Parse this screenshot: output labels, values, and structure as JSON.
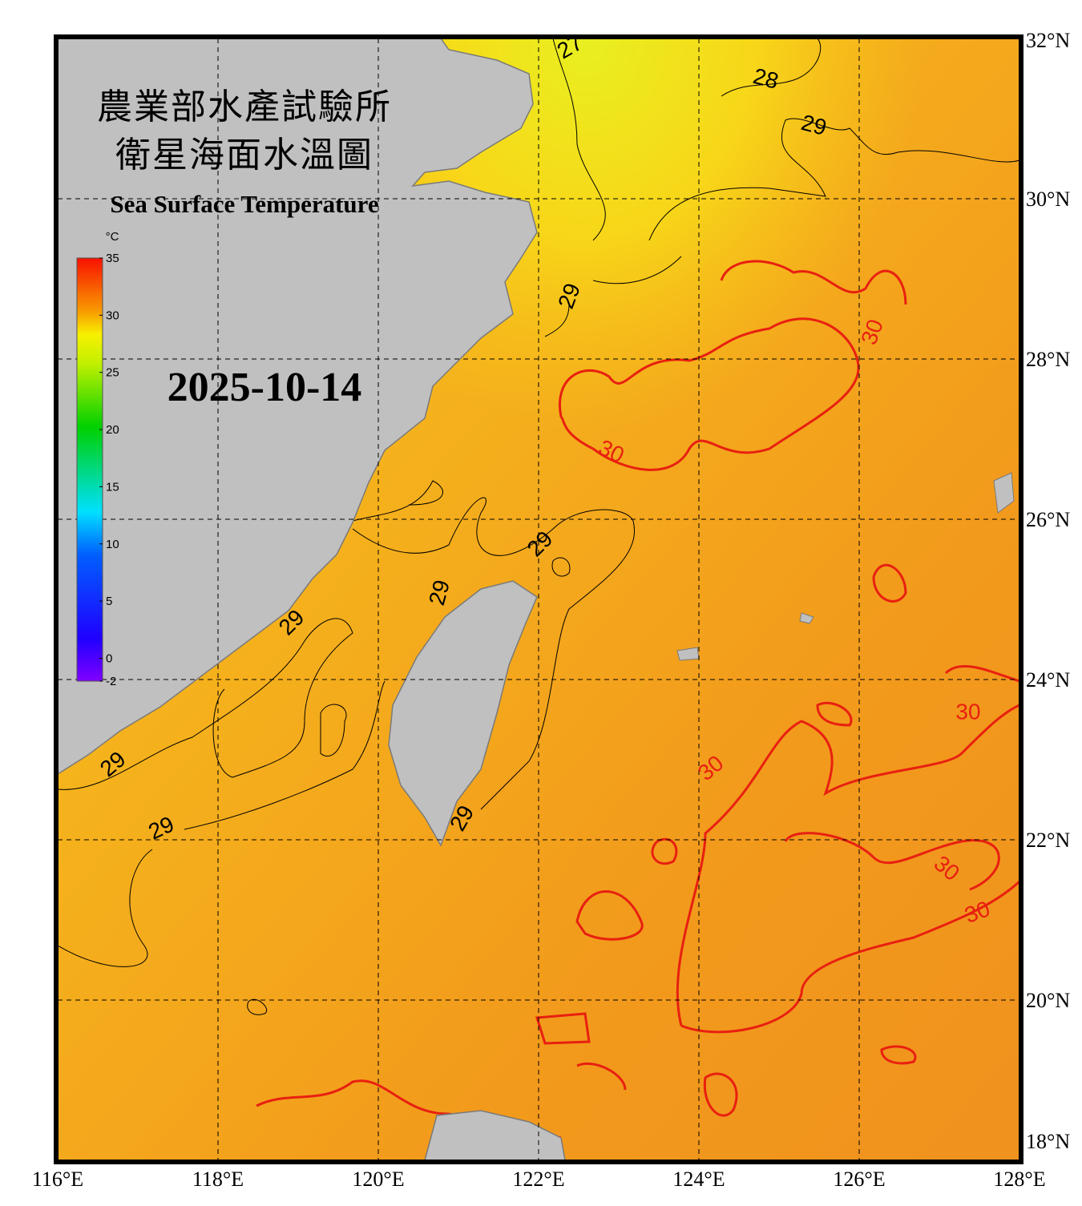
{
  "chart_data": {
    "type": "sst_map",
    "title": "農業部水產試驗所",
    "subtitle": "衛星海面水溫圖",
    "english_title": "Sea Surface Temperature",
    "date": "2025-10-14",
    "xlim": [
      116,
      128
    ],
    "ylim": [
      18,
      32
    ],
    "xticks": [
      {
        "value": 116,
        "label": "116°E"
      },
      {
        "value": 118,
        "label": "118°E"
      },
      {
        "value": 120,
        "label": "120°E"
      },
      {
        "value": 122,
        "label": "122°E"
      },
      {
        "value": 124,
        "label": "124°E"
      },
      {
        "value": 126,
        "label": "126°E"
      },
      {
        "value": 128,
        "label": "128°E"
      }
    ],
    "yticks": [
      {
        "value": 18,
        "label": "18°N"
      },
      {
        "value": 20,
        "label": "20°N"
      },
      {
        "value": 22,
        "label": "22°N"
      },
      {
        "value": 24,
        "label": "24°N"
      },
      {
        "value": 26,
        "label": "26°N"
      },
      {
        "value": 28,
        "label": "28°N"
      },
      {
        "value": 30,
        "label": "30°N"
      },
      {
        "value": 32,
        "label": "32°N"
      }
    ],
    "grid": true,
    "colorbar": {
      "unit": "°C",
      "range": [
        -2,
        35
      ],
      "ticks": [
        -2,
        0,
        5,
        10,
        15,
        20,
        25,
        30,
        35
      ]
    },
    "contour_labels": [
      27,
      28,
      29,
      29,
      29,
      29,
      29,
      29,
      29,
      29,
      30,
      30,
      30,
      30,
      30,
      30
    ]
  }
}
